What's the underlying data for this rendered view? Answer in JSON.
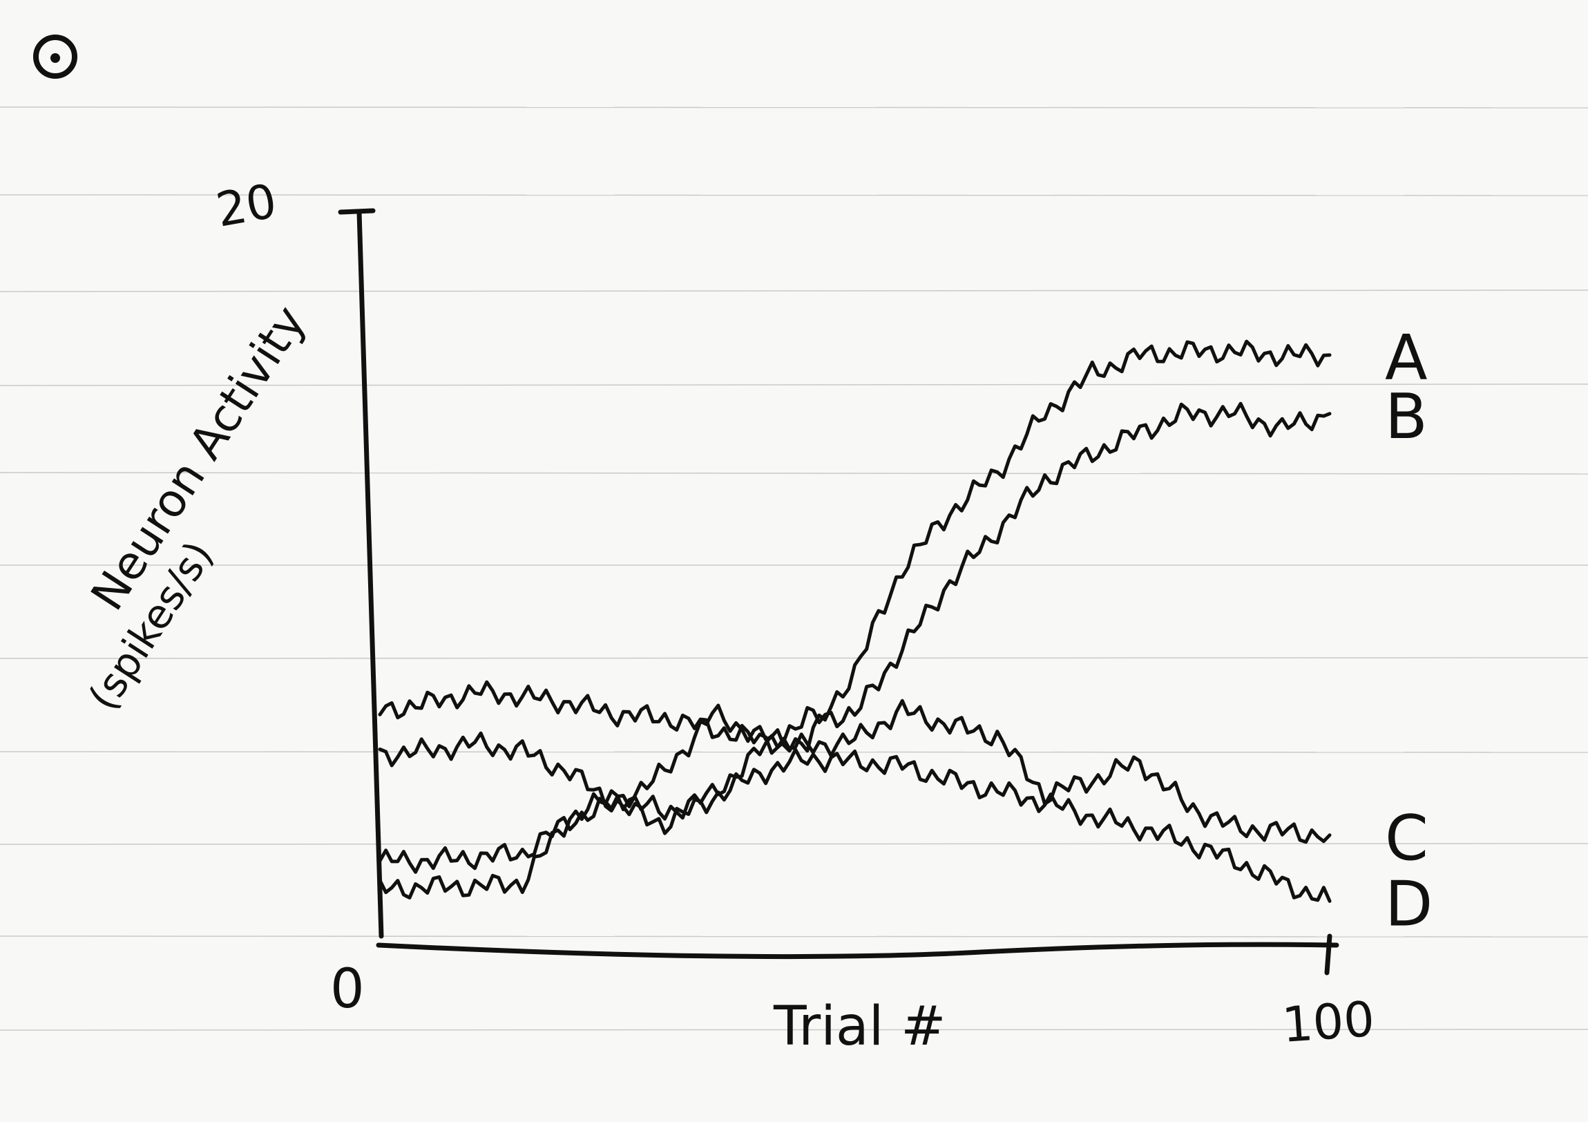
{
  "chart_data": {
    "type": "line",
    "title": "",
    "xlabel": "Trial #",
    "ylabel": "Neuron Activity",
    "ylabel_unit": "(spikes/s)",
    "xlim": [
      0,
      100
    ],
    "ylim": [
      0,
      20
    ],
    "x_tick_labels": [
      "0",
      "100"
    ],
    "y_tick_labels": [
      "20"
    ],
    "grid": false,
    "legend": "none",
    "series": [
      {
        "name": "A",
        "x": [
          0,
          5,
          10,
          15,
          20,
          25,
          30,
          35,
          40,
          45,
          50,
          55,
          60,
          65,
          70,
          75,
          80,
          85,
          90,
          95,
          100
        ],
        "y": [
          2.3,
          2.3,
          2.4,
          2.5,
          3.4,
          3.9,
          4.7,
          6.3,
          5.7,
          5.5,
          7.5,
          10.3,
          11.8,
          12.9,
          14.5,
          15.6,
          16.1,
          16.2,
          16.2,
          16.1,
          16.1
        ]
      },
      {
        "name": "B",
        "x": [
          0,
          5,
          10,
          15,
          20,
          25,
          30,
          35,
          40,
          45,
          50,
          55,
          60,
          65,
          70,
          75,
          80,
          85,
          90,
          95,
          100
        ],
        "y": [
          1.5,
          1.6,
          1.6,
          1.7,
          3.5,
          4.1,
          3.6,
          4.1,
          5.3,
          6.2,
          6.3,
          8.1,
          9.9,
          11.3,
          12.7,
          13.4,
          14.0,
          14.5,
          14.5,
          14.1,
          14.5
        ]
      },
      {
        "name": "C",
        "x": [
          0,
          5,
          10,
          15,
          20,
          25,
          30,
          35,
          40,
          45,
          50,
          55,
          60,
          65,
          70,
          75,
          80,
          85,
          90,
          95,
          100
        ],
        "y": [
          6.4,
          6.6,
          6.9,
          6.8,
          6.6,
          6.3,
          6.2,
          5.9,
          5.6,
          5.4,
          5.6,
          6.4,
          6.0,
          5.7,
          4.1,
          4.5,
          5.0,
          3.8,
          3.2,
          3.1,
          3.0
        ]
      },
      {
        "name": "D",
        "x": [
          0,
          5,
          10,
          15,
          20,
          25,
          30,
          35,
          40,
          45,
          50,
          55,
          60,
          65,
          70,
          75,
          80,
          85,
          90,
          95,
          100
        ],
        "y": [
          5.2,
          5.3,
          5.5,
          5.3,
          4.7,
          3.8,
          3.3,
          4.0,
          4.7,
          5.1,
          5.0,
          4.9,
          4.5,
          4.2,
          3.9,
          3.5,
          3.2,
          2.8,
          2.3,
          1.7,
          1.2
        ]
      }
    ]
  }
}
